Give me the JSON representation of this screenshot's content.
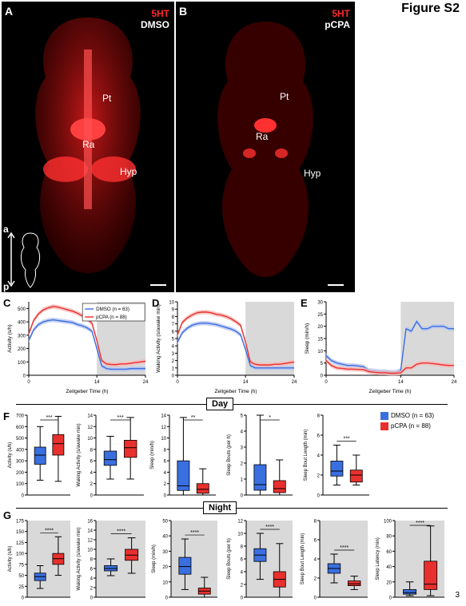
{
  "figure_title": "Figure S2",
  "page_number": "3",
  "panels": {
    "A": {
      "letter": "A",
      "stain": "5HT",
      "condition": "DMSO",
      "labels": [
        "Pt",
        "Ra",
        "Hyp"
      ],
      "axis_a": "a",
      "axis_p": "p"
    },
    "B": {
      "letter": "B",
      "stain": "5HT",
      "condition": "pCPA",
      "labels": [
        "Pt",
        "Ra",
        "Hyp"
      ]
    },
    "C": {
      "letter": "C"
    },
    "D": {
      "letter": "D"
    },
    "E": {
      "letter": "E"
    },
    "F": {
      "letter": "F"
    },
    "G": {
      "letter": "G"
    }
  },
  "sections": {
    "day": "Day",
    "night": "Night"
  },
  "legend": {
    "dmso": "DMSO (n = 63)",
    "pcpa": "pCPA (n = 88)",
    "dmso_color": "#3a6fe0",
    "pcpa_color": "#e8302e"
  },
  "chart_data": [
    {
      "type": "line",
      "panel": "C",
      "xlabel": "Zeitgeber Time (h)",
      "ylabel": "Activity (s/h)",
      "xticks": [
        "0",
        "14",
        "24"
      ],
      "yticks": [
        "0",
        "100",
        "200",
        "300",
        "400",
        "500"
      ],
      "xlim": [
        0,
        24
      ],
      "ylim": [
        0,
        550
      ],
      "shaded_x": [
        14,
        24
      ],
      "x": [
        0,
        1,
        2,
        3,
        4,
        5,
        6,
        7,
        8,
        9,
        10,
        11,
        12,
        13,
        14,
        15,
        16,
        17,
        18,
        19,
        20,
        21,
        22,
        23,
        24
      ],
      "series": [
        {
          "name": "DMSO (n = 63)",
          "values": [
            260,
            340,
            380,
            400,
            410,
            415,
            410,
            405,
            400,
            395,
            380,
            370,
            355,
            330,
            200,
            70,
            50,
            45,
            45,
            45,
            45,
            50,
            50,
            50,
            50
          ]
        },
        {
          "name": "pCPA (n = 88)",
          "values": [
            310,
            410,
            460,
            490,
            505,
            515,
            510,
            500,
            490,
            480,
            465,
            445,
            420,
            390,
            260,
            110,
            85,
            80,
            80,
            85,
            85,
            90,
            95,
            100,
            105
          ]
        }
      ]
    },
    {
      "type": "line",
      "panel": "D",
      "xlabel": "Zeitgeber Time (h)",
      "ylabel": "Waking Activity (s/awake min)",
      "xticks": [
        "0",
        "14",
        "24"
      ],
      "yticks": [
        "0",
        "1",
        "2",
        "3",
        "4",
        "5",
        "6",
        "7",
        "8",
        "9",
        "10"
      ],
      "xlim": [
        0,
        24
      ],
      "ylim": [
        0,
        10
      ],
      "shaded_x": [
        14,
        24
      ],
      "x": [
        0,
        1,
        2,
        3,
        4,
        5,
        6,
        7,
        8,
        9,
        10,
        11,
        12,
        13,
        14,
        15,
        16,
        17,
        18,
        19,
        20,
        21,
        22,
        23,
        24
      ],
      "series": [
        {
          "name": "DMSO (n = 63)",
          "values": [
            4.5,
            5.8,
            6.4,
            6.8,
            7.0,
            7.1,
            7.1,
            7.0,
            6.9,
            6.7,
            6.5,
            6.3,
            6.0,
            5.5,
            3.5,
            1.3,
            1.0,
            1.0,
            1.0,
            1.0,
            1.0,
            1.0,
            1.0,
            1.0,
            1.0
          ]
        },
        {
          "name": "pCPA (n = 88)",
          "values": [
            5.5,
            7.2,
            7.8,
            8.2,
            8.5,
            8.6,
            8.6,
            8.5,
            8.3,
            8.2,
            8.0,
            7.7,
            7.3,
            6.8,
            4.5,
            1.8,
            1.5,
            1.4,
            1.4,
            1.4,
            1.5,
            1.5,
            1.6,
            1.7,
            1.8
          ]
        }
      ]
    },
    {
      "type": "line",
      "panel": "E",
      "xlabel": "Zeitgeber Time (h)",
      "ylabel": "Sleep (min/h)",
      "xticks": [
        "0",
        "14",
        "24"
      ],
      "yticks": [
        "0",
        "5",
        "10",
        "15",
        "20",
        "25",
        "30"
      ],
      "xlim": [
        0,
        24
      ],
      "ylim": [
        0,
        30
      ],
      "shaded_x": [
        14,
        24
      ],
      "x": [
        0,
        1,
        2,
        3,
        4,
        5,
        6,
        7,
        8,
        9,
        10,
        11,
        12,
        13,
        14,
        15,
        16,
        17,
        18,
        19,
        20,
        21,
        22,
        23,
        24
      ],
      "series": [
        {
          "name": "DMSO (n = 63)",
          "values": [
            8,
            6,
            5,
            4.5,
            4,
            4,
            3.8,
            3.5,
            2,
            1.8,
            1.5,
            1.5,
            1.2,
            1.2,
            2,
            19,
            18,
            22,
            19,
            19,
            20,
            20,
            20,
            19,
            19
          ]
        },
        {
          "name": "pCPA (n = 88)",
          "values": [
            6,
            4,
            3,
            2.8,
            2.5,
            2.5,
            2.4,
            2.3,
            1.5,
            1.2,
            1.0,
            1.0,
            0.8,
            0.8,
            1,
            3,
            3,
            4.5,
            5,
            5,
            4.8,
            4.5,
            4.2,
            4.0,
            4.0
          ]
        }
      ]
    },
    {
      "type": "box",
      "panel": "F1",
      "section": "Day",
      "ylabel": "Activity (s/h)",
      "yticks": [
        "0",
        "100",
        "200",
        "300",
        "400",
        "500",
        "600",
        "700"
      ],
      "ylim": [
        0,
        700
      ],
      "significance": "***",
      "series": [
        {
          "name": "DMSO (n = 63)",
          "min": 130,
          "q1": 270,
          "median": 350,
          "q3": 420,
          "max": 600
        },
        {
          "name": "pCPA (n = 88)",
          "min": 120,
          "q1": 350,
          "median": 450,
          "q3": 530,
          "max": 690
        }
      ]
    },
    {
      "type": "box",
      "panel": "F2",
      "section": "Day",
      "ylabel": "Waking Activity (s/awake min)",
      "yticks": [
        "0",
        "2",
        "4",
        "6",
        "8",
        "10",
        "12",
        "14"
      ],
      "ylim": [
        0,
        14
      ],
      "significance": "***",
      "series": [
        {
          "name": "DMSO (n = 63)",
          "min": 2.8,
          "q1": 5.2,
          "median": 6.2,
          "q3": 7.7,
          "max": 10.3
        },
        {
          "name": "pCPA (n = 88)",
          "min": 2.8,
          "q1": 6.6,
          "median": 8.3,
          "q3": 9.6,
          "max": 13.6
        }
      ]
    },
    {
      "type": "box",
      "panel": "F3",
      "section": "Day",
      "ylabel": "Sleep (min/h)",
      "yticks": [
        "0",
        "2",
        "4",
        "6",
        "8",
        "10",
        "12",
        "14"
      ],
      "ylim": [
        0,
        14
      ],
      "significance": "**",
      "series": [
        {
          "name": "DMSO (n = 63)",
          "min": 0,
          "q1": 0.8,
          "median": 1.6,
          "q3": 6.0,
          "max": 13.6
        },
        {
          "name": "pCPA (n = 88)",
          "min": 0,
          "q1": 0.3,
          "median": 1.0,
          "q3": 2.0,
          "max": 4.6
        }
      ]
    },
    {
      "type": "box",
      "panel": "F4",
      "section": "Day",
      "ylabel": "Sleep Bouts (per h)",
      "yticks": [
        "0",
        "1",
        "2",
        "3",
        "4",
        "5"
      ],
      "ylim": [
        0,
        5
      ],
      "significance": "*",
      "series": [
        {
          "name": "DMSO (n = 63)",
          "min": 0,
          "q1": 0.3,
          "median": 0.65,
          "q3": 1.9,
          "max": 5.0
        },
        {
          "name": "pCPA (n = 88)",
          "min": 0,
          "q1": 0.15,
          "median": 0.4,
          "q3": 0.9,
          "max": 2.2
        }
      ]
    },
    {
      "type": "box",
      "panel": "F5",
      "section": "Day",
      "ylabel": "Sleep Bout Length (min)",
      "yticks": [
        "0",
        "2",
        "4",
        "6",
        "8"
      ],
      "ylim": [
        0,
        8
      ],
      "significance": "***",
      "series": [
        {
          "name": "DMSO (n = 63)",
          "min": 1.0,
          "q1": 1.9,
          "median": 2.4,
          "q3": 3.4,
          "max": 5.0
        },
        {
          "name": "pCPA (n = 88)",
          "min": 1.0,
          "q1": 1.3,
          "median": 2.0,
          "q3": 2.5,
          "max": 4.0
        }
      ]
    },
    {
      "type": "box",
      "panel": "G1",
      "section": "Night",
      "ylabel": "Activity (s/h)",
      "yticks": [
        "0",
        "25",
        "50",
        "75",
        "100",
        "125",
        "150",
        "175"
      ],
      "ylim": [
        0,
        175
      ],
      "significance": "****",
      "series": [
        {
          "name": "DMSO (n = 63)",
          "min": 20,
          "q1": 38,
          "median": 47,
          "q3": 55,
          "max": 72
        },
        {
          "name": "pCPA (n = 88)",
          "min": 50,
          "q1": 75,
          "median": 88,
          "q3": 100,
          "max": 138
        }
      ]
    },
    {
      "type": "box",
      "panel": "G2",
      "section": "Night",
      "ylabel": "Waking Activity (s/awake min)",
      "yticks": [
        "0",
        "2",
        "4",
        "6",
        "8",
        "10",
        "12",
        "14",
        "16"
      ],
      "ylim": [
        0,
        16
      ],
      "significance": "****",
      "series": [
        {
          "name": "DMSO (n = 63)",
          "min": 4.5,
          "q1": 5.5,
          "median": 6.0,
          "q3": 6.6,
          "max": 8.0
        },
        {
          "name": "pCPA (n = 88)",
          "min": 5.0,
          "q1": 7.7,
          "median": 8.8,
          "q3": 10.0,
          "max": 12.4
        }
      ]
    },
    {
      "type": "box",
      "panel": "G3",
      "section": "Night",
      "ylabel": "Sleep (min/h)",
      "yticks": [
        "0",
        "10",
        "20",
        "30",
        "40",
        "50"
      ],
      "ylim": [
        0,
        50
      ],
      "significance": "****",
      "series": [
        {
          "name": "DMSO (n = 63)",
          "min": 5,
          "q1": 15,
          "median": 20,
          "q3": 26,
          "max": 38
        },
        {
          "name": "pCPA (n = 88)",
          "min": 0,
          "q1": 2,
          "median": 4,
          "q3": 6,
          "max": 13
        }
      ]
    },
    {
      "type": "box",
      "panel": "G4",
      "section": "Night",
      "ylabel": "Sleep Bouts (per h)",
      "yticks": [
        "0",
        "2",
        "4",
        "6",
        "8",
        "10",
        "12"
      ],
      "ylim": [
        0,
        12
      ],
      "significance": "****",
      "series": [
        {
          "name": "DMSO (n = 63)",
          "min": 2.8,
          "q1": 5.6,
          "median": 6.6,
          "q3": 7.6,
          "max": 10.0
        },
        {
          "name": "pCPA (n = 88)",
          "min": 0,
          "q1": 1.6,
          "median": 2.8,
          "q3": 4.0,
          "max": 8.4
        }
      ]
    },
    {
      "type": "box",
      "panel": "G5",
      "section": "Night",
      "ylabel": "Sleep Bout Length (min)",
      "yticks": [
        "0",
        "2",
        "4",
        "6",
        "8"
      ],
      "ylim": [
        0,
        8
      ],
      "significance": "****",
      "series": [
        {
          "name": "DMSO (n = 63)",
          "min": 1.5,
          "q1": 2.5,
          "median": 3.0,
          "q3": 3.5,
          "max": 4.5
        },
        {
          "name": "pCPA (n = 88)",
          "min": 0.8,
          "q1": 1.2,
          "median": 1.4,
          "q3": 1.7,
          "max": 2.2
        }
      ]
    },
    {
      "type": "box",
      "panel": "G6",
      "section": "Night",
      "ylabel": "Sleep Latency (min)",
      "yticks": [
        "0",
        "20",
        "40",
        "60",
        "80",
        "100"
      ],
      "ylim": [
        0,
        100
      ],
      "significance": "****",
      "series": [
        {
          "name": "DMSO (n = 63)",
          "min": 2,
          "q1": 4,
          "median": 6,
          "q3": 10,
          "max": 20
        },
        {
          "name": "pCPA (n = 88)",
          "min": 2,
          "q1": 10,
          "median": 17,
          "q3": 47,
          "max": 93
        }
      ]
    }
  ]
}
